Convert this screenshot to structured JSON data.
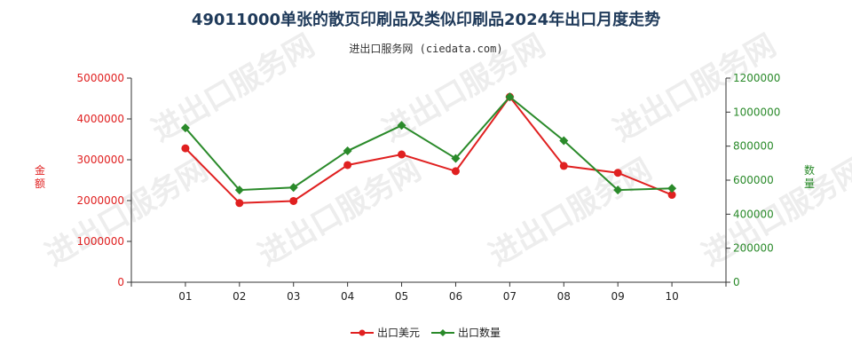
{
  "header": {
    "title": "49011000单张的散页印刷品及类似印刷品2024年出口月度走势",
    "subtitle": "进出口服务网 (ciedata.com)"
  },
  "colors": {
    "series1": "#e02020",
    "series2": "#2a8a2a",
    "axis": "#333333"
  },
  "watermark": "进出口服务网",
  "chart_data": {
    "type": "line",
    "title": "49011000单张的散页印刷品及类似印刷品2024年出口月度走势",
    "categories": [
      "01",
      "02",
      "03",
      "04",
      "05",
      "06",
      "07",
      "08",
      "09",
      "10"
    ],
    "y_left": {
      "label": "金额",
      "ylim": [
        0,
        5000000
      ],
      "ticks": [
        "0",
        "1000000",
        "2000000",
        "3000000",
        "4000000",
        "5000000"
      ]
    },
    "y_right": {
      "label": "数量",
      "ylim": [
        0,
        1200000
      ],
      "ticks": [
        "0",
        "200000",
        "400000",
        "600000",
        "800000",
        "1000000",
        "1200000"
      ]
    },
    "series": [
      {
        "name": "出口美元",
        "axis": "left",
        "values": [
          3280000,
          1940000,
          1990000,
          2870000,
          3130000,
          2720000,
          4540000,
          2850000,
          2680000,
          2140000
        ]
      },
      {
        "name": "出口数量",
        "axis": "right",
        "values": [
          907000,
          542000,
          557000,
          772000,
          922000,
          728000,
          1090000,
          832000,
          542000,
          552000
        ]
      }
    ],
    "grid": false,
    "legend": "bottom-center"
  }
}
